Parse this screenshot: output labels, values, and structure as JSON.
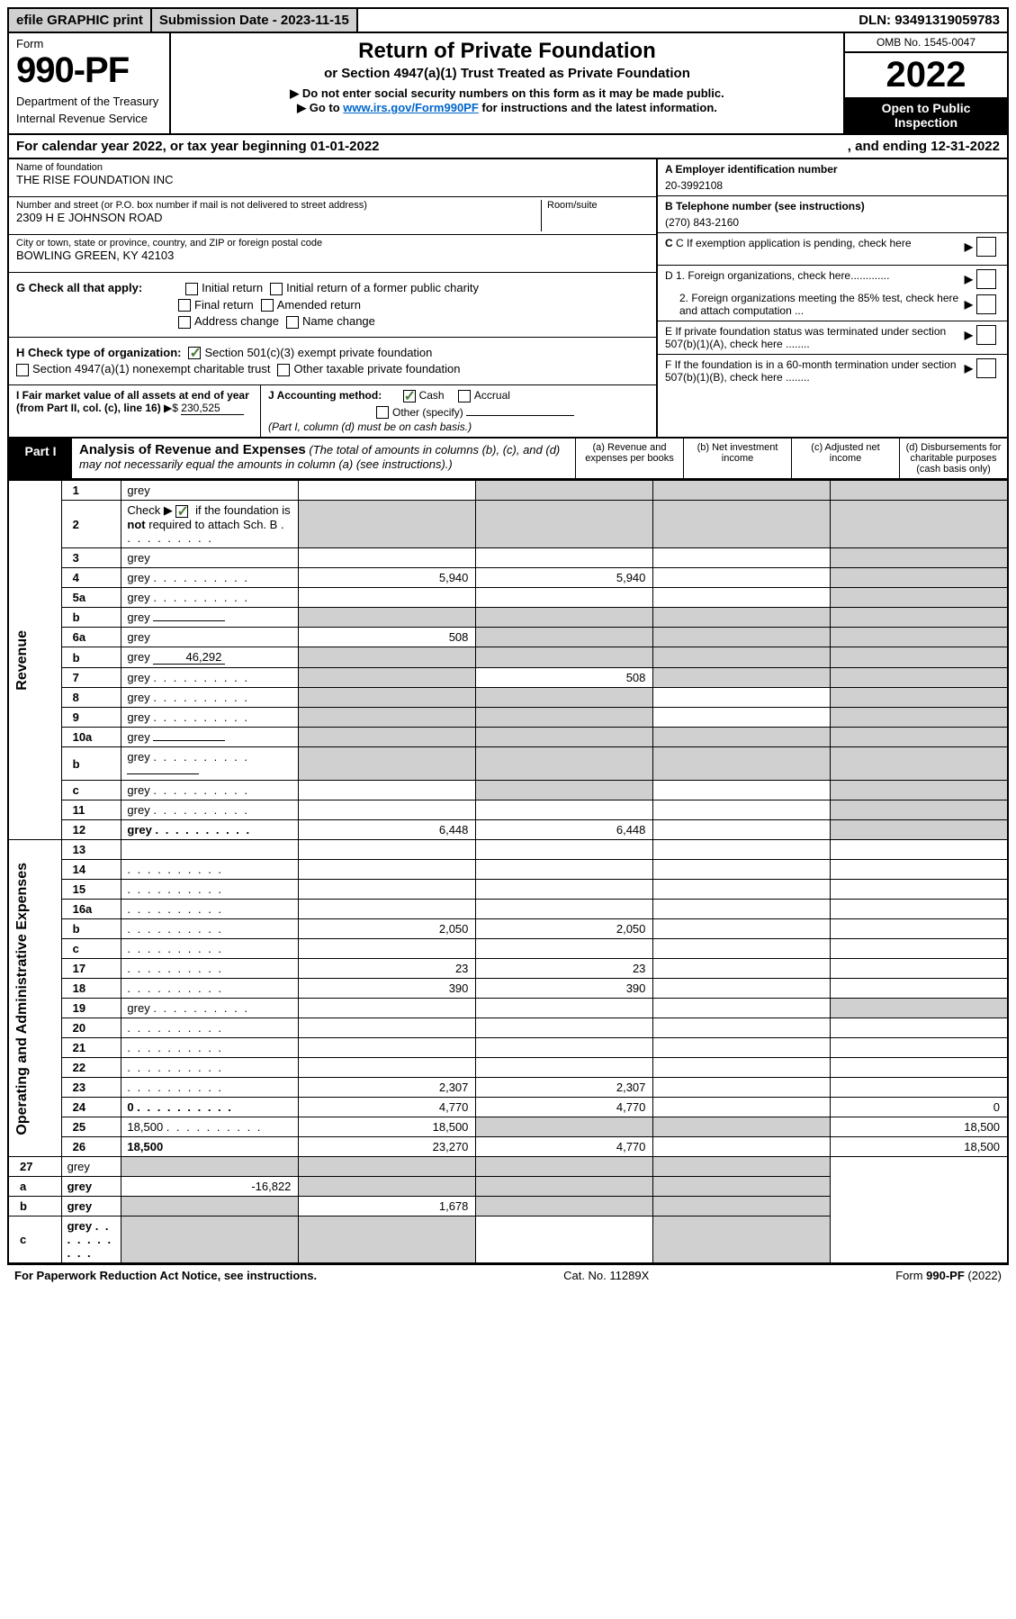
{
  "top": {
    "efile": "efile GRAPHIC print",
    "submission": "Submission Date - 2023-11-15",
    "dln": "DLN: 93491319059783"
  },
  "header": {
    "form_label": "Form",
    "form_number": "990-PF",
    "dept1": "Department of the Treasury",
    "dept2": "Internal Revenue Service",
    "title": "Return of Private Foundation",
    "subtitle": "or Section 4947(a)(1) Trust Treated as Private Foundation",
    "note1": "▶ Do not enter social security numbers on this form as it may be made public.",
    "note2_pre": "▶ Go to ",
    "note2_link": "www.irs.gov/Form990PF",
    "note2_post": " for instructions and the latest information.",
    "omb": "OMB No. 1545-0047",
    "year": "2022",
    "open": "Open to Public Inspection"
  },
  "calendar": {
    "text": "For calendar year 2022, or tax year beginning 01-01-2022",
    "ending": ", and ending 12-31-2022"
  },
  "entity": {
    "name_label": "Name of foundation",
    "name": "THE RISE FOUNDATION INC",
    "addr_label": "Number and street (or P.O. box number if mail is not delivered to street address)",
    "addr": "2309 H E JOHNSON ROAD",
    "room_label": "Room/suite",
    "city_label": "City or town, state or province, country, and ZIP or foreign postal code",
    "city": "BOWLING GREEN, KY  42103"
  },
  "right": {
    "a_label": "A Employer identification number",
    "a_val": "20-3992108",
    "b_label": "B Telephone number (see instructions)",
    "b_val": "(270) 843-2160",
    "c_text": "C If exemption application is pending, check here",
    "d1_text": "D 1. Foreign organizations, check here.............",
    "d2_text": "2. Foreign organizations meeting the 85% test, check here and attach computation ...",
    "e_text": "E  If private foundation status was terminated under section 507(b)(1)(A), check here ........",
    "f_text": "F  If the foundation is in a 60-month termination under section 507(b)(1)(B), check here ........"
  },
  "g": {
    "label": "G Check all that apply:",
    "opts": [
      "Initial return",
      "Initial return of a former public charity",
      "Final return",
      "Amended return",
      "Address change",
      "Name change"
    ]
  },
  "h": {
    "label": "H Check type of organization:",
    "opt1": "Section 501(c)(3) exempt private foundation",
    "opt2": "Section 4947(a)(1) nonexempt charitable trust",
    "opt3": "Other taxable private foundation"
  },
  "i": {
    "label": "I Fair market value of all assets at end of year (from Part II, col. (c), line 16)",
    "arrow": "▶$",
    "val": "230,525"
  },
  "j": {
    "label": "J Accounting method:",
    "cash": "Cash",
    "accrual": "Accrual",
    "other": "Other (specify)",
    "note": "(Part I, column (d) must be on cash basis.)"
  },
  "part1": {
    "label": "Part I",
    "title": "Analysis of Revenue and Expenses",
    "sub": " (The total of amounts in columns (b), (c), and (d) may not necessarily equal the amounts in column (a) (see instructions).)",
    "col_a": "(a)   Revenue and expenses per books",
    "col_b": "(b)   Net investment income",
    "col_c": "(c)   Adjusted net income",
    "col_d": "(d)  Disbursements for charitable purposes (cash basis only)"
  },
  "sides": {
    "revenue": "Revenue",
    "expenses": "Operating and Administrative Expenses"
  },
  "rows": [
    {
      "n": "1",
      "d": "grey",
      "a": "",
      "b": "grey",
      "c": "grey"
    },
    {
      "n": "2",
      "d": "grey",
      "dots": true,
      "a": "grey",
      "b": "grey",
      "c": "grey",
      "checkrow": true
    },
    {
      "n": "3",
      "d": "grey",
      "a": "",
      "b": "",
      "c": ""
    },
    {
      "n": "4",
      "d": "grey",
      "dots": true,
      "a": "5,940",
      "b": "5,940",
      "c": ""
    },
    {
      "n": "5a",
      "d": "grey",
      "dots": true,
      "a": "",
      "b": "",
      "c": ""
    },
    {
      "n": "b",
      "d": "grey",
      "inline": "",
      "a": "grey",
      "b": "grey",
      "c": "grey"
    },
    {
      "n": "6a",
      "d": "grey",
      "a": "508",
      "b": "grey",
      "c": "grey"
    },
    {
      "n": "b",
      "d": "grey",
      "inline": "46,292",
      "a": "grey",
      "b": "grey",
      "c": "grey"
    },
    {
      "n": "7",
      "d": "grey",
      "dots": true,
      "a": "grey",
      "b": "508",
      "c": "grey"
    },
    {
      "n": "8",
      "d": "grey",
      "dots": true,
      "a": "grey",
      "b": "grey",
      "c": ""
    },
    {
      "n": "9",
      "d": "grey",
      "dots": true,
      "a": "grey",
      "b": "grey",
      "c": ""
    },
    {
      "n": "10a",
      "d": "grey",
      "inline": "",
      "a": "grey",
      "b": "grey",
      "c": "grey"
    },
    {
      "n": "b",
      "d": "grey",
      "dots": true,
      "inline": "",
      "a": "grey",
      "b": "grey",
      "c": "grey"
    },
    {
      "n": "c",
      "d": "grey",
      "dots": true,
      "a": "",
      "b": "grey",
      "c": ""
    },
    {
      "n": "11",
      "d": "grey",
      "dots": true,
      "a": "",
      "b": "",
      "c": ""
    },
    {
      "n": "12",
      "d": "grey",
      "dots": true,
      "bold": true,
      "a": "6,448",
      "b": "6,448",
      "c": ""
    }
  ],
  "exp_rows": [
    {
      "n": "13",
      "d": "",
      "a": "",
      "b": "",
      "c": ""
    },
    {
      "n": "14",
      "d": "",
      "dots": true,
      "a": "",
      "b": "",
      "c": ""
    },
    {
      "n": "15",
      "d": "",
      "dots": true,
      "a": "",
      "b": "",
      "c": ""
    },
    {
      "n": "16a",
      "d": "",
      "dots": true,
      "a": "",
      "b": "",
      "c": ""
    },
    {
      "n": "b",
      "d": "",
      "dots": true,
      "a": "2,050",
      "b": "2,050",
      "c": ""
    },
    {
      "n": "c",
      "d": "",
      "dots": true,
      "a": "",
      "b": "",
      "c": ""
    },
    {
      "n": "17",
      "d": "",
      "dots": true,
      "a": "23",
      "b": "23",
      "c": ""
    },
    {
      "n": "18",
      "d": "",
      "dots": true,
      "a": "390",
      "b": "390",
      "c": ""
    },
    {
      "n": "19",
      "d": "grey",
      "dots": true,
      "a": "",
      "b": "",
      "c": ""
    },
    {
      "n": "20",
      "d": "",
      "dots": true,
      "a": "",
      "b": "",
      "c": ""
    },
    {
      "n": "21",
      "d": "",
      "dots": true,
      "a": "",
      "b": "",
      "c": ""
    },
    {
      "n": "22",
      "d": "",
      "dots": true,
      "a": "",
      "b": "",
      "c": ""
    },
    {
      "n": "23",
      "d": "",
      "dots": true,
      "a": "2,307",
      "b": "2,307",
      "c": ""
    },
    {
      "n": "24",
      "d": "0",
      "dots": true,
      "bold": true,
      "a": "4,770",
      "b": "4,770",
      "c": ""
    },
    {
      "n": "25",
      "d": "18,500",
      "dots": true,
      "a": "18,500",
      "b": "grey",
      "c": "grey"
    },
    {
      "n": "26",
      "d": "18,500",
      "bold": true,
      "a": "23,270",
      "b": "4,770",
      "c": ""
    }
  ],
  "final_rows": [
    {
      "n": "27",
      "d": "grey",
      "a": "grey",
      "b": "grey",
      "c": "grey"
    },
    {
      "n": "a",
      "d": "grey",
      "bold": true,
      "a": "-16,822",
      "b": "grey",
      "c": "grey"
    },
    {
      "n": "b",
      "d": "grey",
      "bold": true,
      "a": "grey",
      "b": "1,678",
      "c": "grey"
    },
    {
      "n": "c",
      "d": "grey",
      "dots": true,
      "bold": true,
      "a": "grey",
      "b": "grey",
      "c": ""
    }
  ],
  "footer": {
    "left": "For Paperwork Reduction Act Notice, see instructions.",
    "center": "Cat. No. 11289X",
    "right": "Form 990-PF (2022)"
  }
}
